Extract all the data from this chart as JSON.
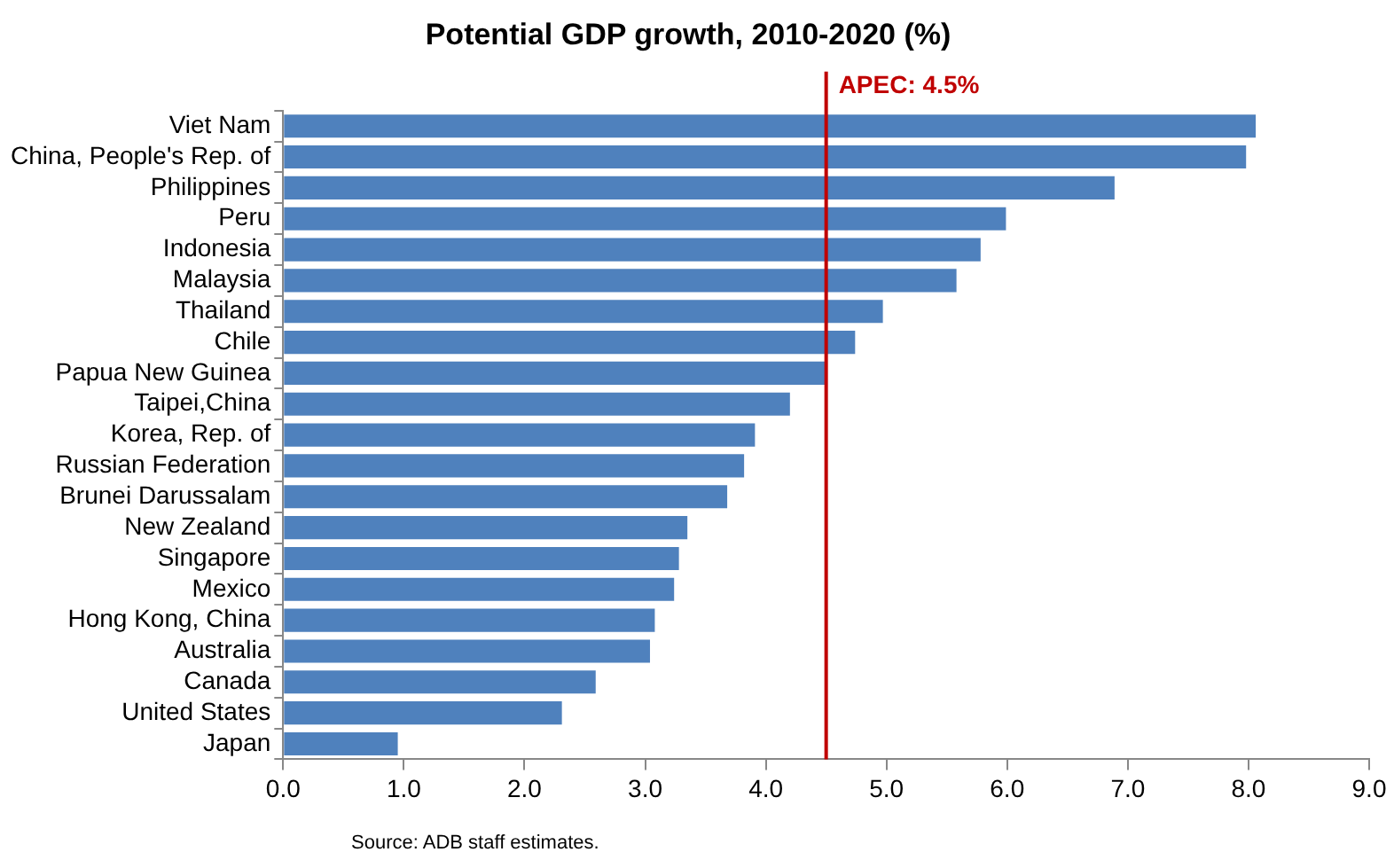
{
  "chart_data": {
    "type": "bar",
    "orientation": "horizontal",
    "title": "Potential GDP growth, 2010-2020 (%)",
    "categories": [
      "Viet Nam",
      "China, People's Rep. of",
      "Philippines",
      "Peru",
      "Indonesia",
      "Malaysia",
      "Thailand",
      "Chile",
      "Papua New Guinea",
      "Taipei,China",
      "Korea, Rep. of",
      "Russian Federation",
      "Brunei Darussalam",
      "New Zealand",
      "Singapore",
      "Mexico",
      "Hong Kong, China",
      "Australia",
      "Canada",
      "United States",
      "Japan"
    ],
    "values": [
      8.06,
      7.98,
      6.89,
      5.99,
      5.78,
      5.58,
      4.97,
      4.74,
      4.49,
      4.2,
      3.91,
      3.82,
      3.68,
      3.35,
      3.28,
      3.24,
      3.08,
      3.04,
      2.59,
      2.31,
      0.95
    ],
    "color": "#4f81bd",
    "xlim": [
      0,
      9
    ],
    "xticks": [
      {
        "value": 0,
        "label": "0.0"
      },
      {
        "value": 1,
        "label": "1.0"
      },
      {
        "value": 2,
        "label": "2.0"
      },
      {
        "value": 3,
        "label": "3.0"
      },
      {
        "value": 4,
        "label": "4.0"
      },
      {
        "value": 5,
        "label": "5.0"
      },
      {
        "value": 6,
        "label": "6.0"
      },
      {
        "value": 7,
        "label": "7.0"
      },
      {
        "value": 8,
        "label": "8.0"
      },
      {
        "value": 9,
        "label": "9.0"
      }
    ],
    "ref_lines": [
      {
        "axis": "x",
        "value": 4.5,
        "label": "APEC: 4.5%",
        "color": "#c00000"
      }
    ],
    "annotations": [
      "Source: ADB staff estimates."
    ],
    "grid": false,
    "legend": false
  }
}
